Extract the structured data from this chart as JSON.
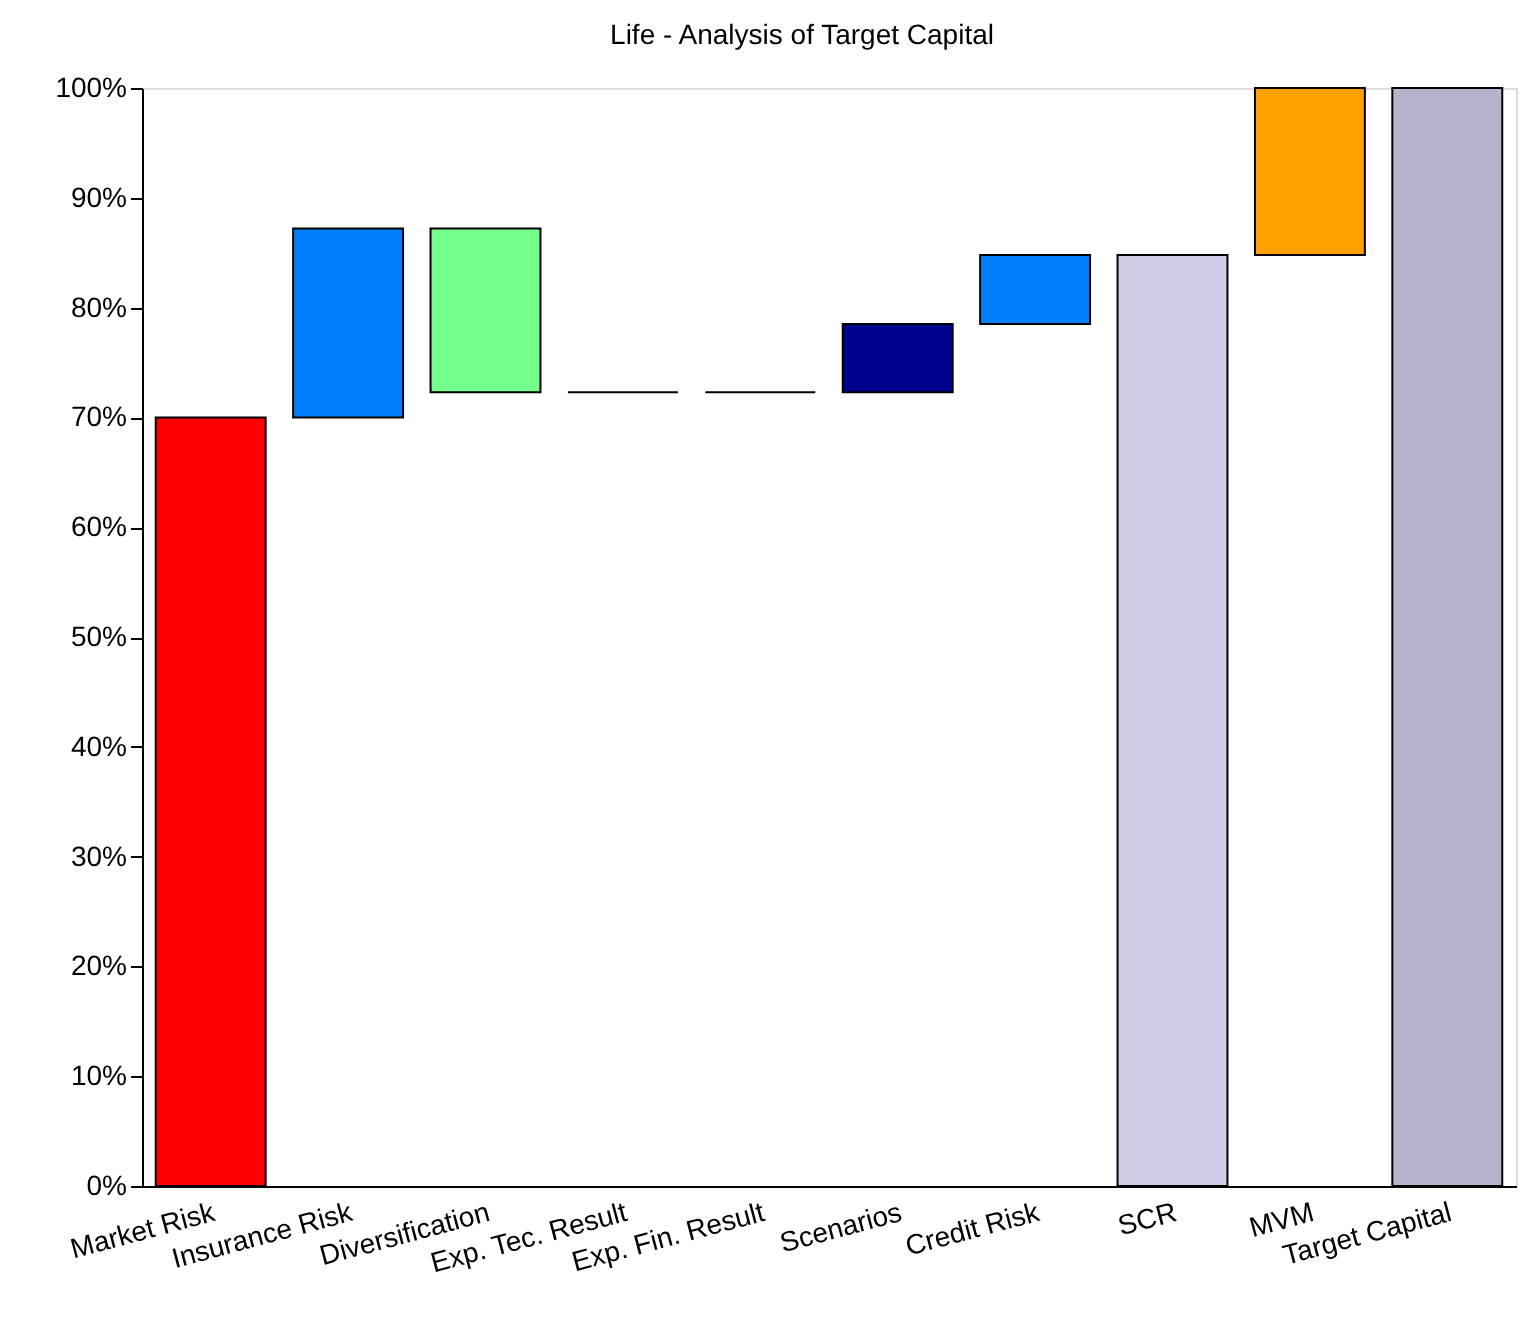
{
  "chart_data": {
    "type": "bar",
    "title": "Life - Analysis of Target Capital",
    "categories": [
      "Market Risk",
      "Insurance Risk",
      "Diversification",
      "Exp. Tec. Result",
      "Exp. Fin. Result",
      "Scenarios",
      "Credit Risk",
      "SCR",
      "MVM",
      "Target Capital"
    ],
    "values": [
      70,
      17.2,
      -14.9,
      0,
      0,
      6.2,
      6.3,
      84.8,
      15.2,
      100
    ],
    "base": [
      0,
      70,
      87.2,
      72.3,
      72.3,
      72.3,
      78.5,
      0,
      84.8,
      0
    ],
    "colors": [
      "#ff0000",
      "#0080ff",
      "#73ff8c",
      "#000000",
      "#000000",
      "#000090",
      "#0080ff",
      "#ccccE6",
      "#ffa000",
      "#b3b3cc"
    ],
    "ylim": [
      0,
      100
    ],
    "yticks": [
      {
        "value": 0,
        "label": "0%"
      },
      {
        "value": 10,
        "label": "10%"
      },
      {
        "value": 20,
        "label": "20%"
      },
      {
        "value": 30,
        "label": "30%"
      },
      {
        "value": 40,
        "label": "40%"
      },
      {
        "value": 50,
        "label": "50%"
      },
      {
        "value": 60,
        "label": "60%"
      },
      {
        "value": 70,
        "label": "70%"
      },
      {
        "value": 80,
        "label": "80%"
      },
      {
        "value": 90,
        "label": "90%"
      },
      {
        "value": 100,
        "label": "100%"
      }
    ],
    "grid": false
  }
}
